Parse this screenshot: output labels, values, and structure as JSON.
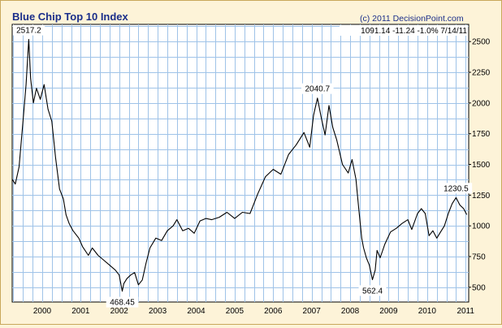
{
  "header": {
    "title": "Blue Chip Top 10 Index",
    "copyright": "(c) 2011 DecisionPoint.com",
    "quote": "1091.14  -11.24  -1.0%  7/14/11"
  },
  "chart_data": {
    "type": "line",
    "title": "Blue Chip Top 10 Index",
    "xlabel": "",
    "ylabel": "",
    "xlim": [
      1999.72,
      2011.58
    ],
    "ylim": [
      380,
      2640
    ],
    "grid": true,
    "legend": "none",
    "x_ticks": [
      "2000",
      "2001",
      "2002",
      "2003",
      "2004",
      "2005",
      "2006",
      "2007",
      "2008",
      "2009",
      "2010",
      "2011"
    ],
    "y_ticks": [
      500,
      750,
      1000,
      1250,
      1500,
      1750,
      2000,
      2250,
      2500
    ],
    "series": [
      {
        "color": "#000000",
        "x": [
          1999.72,
          1999.8,
          1999.9,
          2000.0,
          2000.08,
          2000.15,
          2000.2,
          2000.27,
          2000.35,
          2000.45,
          2000.55,
          2000.65,
          2000.75,
          2000.85,
          2000.95,
          2001.05,
          2001.12,
          2001.2,
          2001.3,
          2001.45,
          2001.55,
          2001.7,
          2001.8,
          2001.95,
          2002.1,
          2002.25,
          2002.4,
          2002.5,
          2002.58,
          2002.62,
          2002.7,
          2002.8,
          2002.9,
          2003.0,
          2003.1,
          2003.2,
          2003.3,
          2003.45,
          2003.6,
          2003.75,
          2003.9,
          2004.0,
          2004.15,
          2004.3,
          2004.45,
          2004.6,
          2004.75,
          2004.9,
          2005.1,
          2005.3,
          2005.5,
          2005.7,
          2005.9,
          2006.1,
          2006.3,
          2006.5,
          2006.7,
          2006.9,
          2007.1,
          2007.3,
          2007.45,
          2007.55,
          2007.65,
          2007.75,
          2007.85,
          2007.95,
          2008.05,
          2008.15,
          2008.3,
          2008.45,
          2008.55,
          2008.65,
          2008.72,
          2008.8,
          2008.85,
          2008.92,
          2009.0,
          2009.08,
          2009.15,
          2009.2,
          2009.28,
          2009.4,
          2009.55,
          2009.7,
          2009.85,
          2010.0,
          2010.1,
          2010.25,
          2010.35,
          2010.45,
          2010.55,
          2010.65,
          2010.75,
          2010.85,
          2010.95,
          2011.05,
          2011.15,
          2011.25,
          2011.35,
          2011.45,
          2011.53
        ],
        "values": [
          1380,
          1340,
          1480,
          1850,
          2150,
          2517,
          2200,
          2000,
          2120,
          2030,
          2150,
          1950,
          1850,
          1550,
          1300,
          1220,
          1090,
          1020,
          960,
          900,
          830,
          760,
          820,
          760,
          720,
          680,
          640,
          600,
          468,
          530,
          570,
          600,
          620,
          520,
          560,
          700,
          820,
          900,
          880,
          960,
          1000,
          1050,
          960,
          980,
          940,
          1040,
          1060,
          1050,
          1070,
          1110,
          1060,
          1110,
          1100,
          1260,
          1400,
          1460,
          1420,
          1580,
          1660,
          1760,
          1640,
          1900,
          2040,
          1880,
          1740,
          1980,
          1800,
          1700,
          1500,
          1430,
          1540,
          1380,
          1150,
          900,
          820,
          740,
          680,
          562,
          640,
          800,
          740,
          850,
          950,
          980,
          1020,
          1050,
          970,
          1100,
          1140,
          1100,
          920,
          960,
          900,
          950,
          1000,
          1100,
          1180,
          1230,
          1170,
          1140,
          1091
        ]
      }
    ],
    "annotations": [
      {
        "label": "2517.2",
        "x": 2000.15,
        "y": 2517.2
      },
      {
        "label": "468.45",
        "x": 2002.58,
        "y": 468.45
      },
      {
        "label": "2040.7",
        "x": 2007.65,
        "y": 2040.7
      },
      {
        "label": "562.4",
        "x": 2009.08,
        "y": 562.4
      },
      {
        "label": "1230.5",
        "x": 2011.25,
        "y": 1230.5
      }
    ]
  }
}
